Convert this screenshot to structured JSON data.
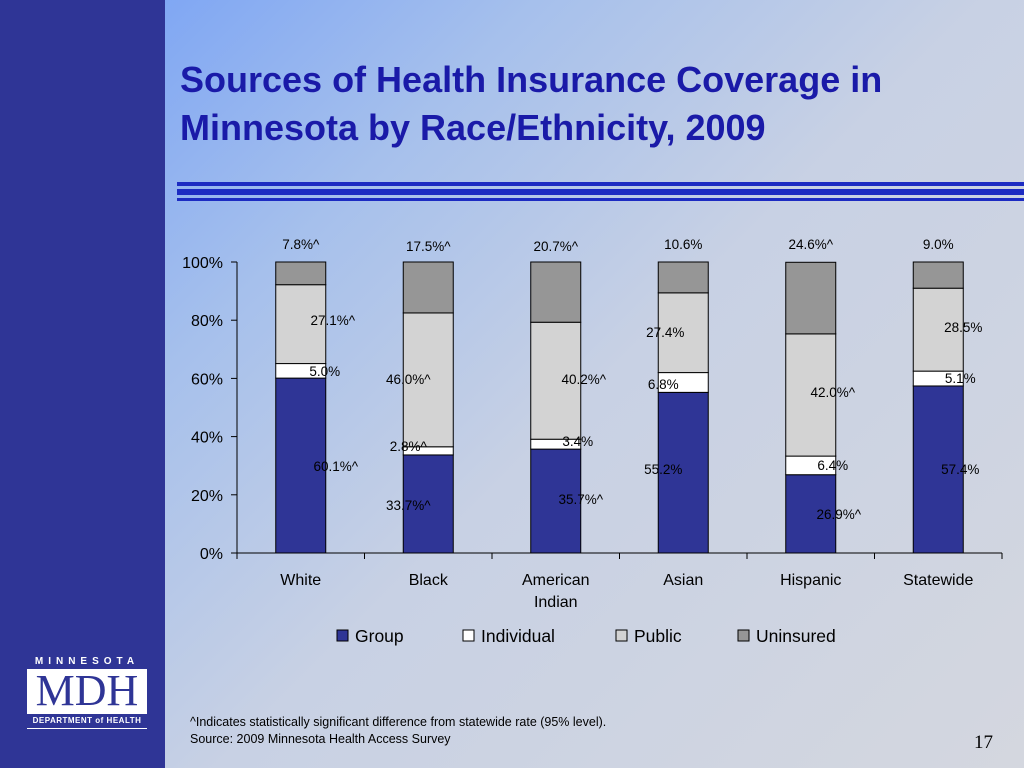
{
  "slide": {
    "title_line1": "Sources of Health Insurance Coverage in",
    "title_line2": "Minnesota by Race/Ethnicity, 2009",
    "footnote": "^Indicates statistically significant difference from statewide rate (95% level).",
    "source": "Source: 2009 Minnesota Health Access Survey",
    "page_number": "17"
  },
  "logo": {
    "top_text": "MINNESOTA",
    "main_text": "MDH",
    "bottom_text": "DEPARTMENT of HEALTH"
  },
  "chart_data": {
    "type": "bar",
    "stacked": true,
    "categories": [
      [
        "White"
      ],
      [
        "Black"
      ],
      [
        "American",
        "Indian"
      ],
      [
        "Asian"
      ],
      [
        "Hispanic"
      ],
      [
        "Statewide"
      ]
    ],
    "series": [
      {
        "name": "Group",
        "color": "#2f3596",
        "values": [
          60.1,
          33.7,
          35.7,
          55.2,
          26.9,
          57.4
        ],
        "labels": [
          "60.1%^",
          "33.7%^",
          "35.7%^",
          "55.2%",
          "26.9%^",
          "57.4%"
        ]
      },
      {
        "name": "Individual",
        "color": "#ffffff",
        "values": [
          5.0,
          2.8,
          3.4,
          6.8,
          6.4,
          5.1
        ],
        "labels": [
          "5.0%",
          "2.8%^",
          "3.4%",
          "6.8%",
          "6.4%",
          "5.1%"
        ]
      },
      {
        "name": "Public",
        "color": "#d3d3d3",
        "values": [
          27.1,
          46.0,
          40.2,
          27.4,
          42.0,
          28.5
        ],
        "labels": [
          "27.1%^",
          "46.0%^",
          "40.2%^",
          "27.4%",
          "42.0%^",
          "28.5%"
        ]
      },
      {
        "name": "Uninsured",
        "color": "#969696",
        "values": [
          7.8,
          17.5,
          20.7,
          10.6,
          24.6,
          9.0
        ],
        "labels": [
          "7.8%^",
          "17.5%^",
          "20.7%^",
          "10.6%",
          "24.6%^",
          "9.0%"
        ]
      }
    ],
    "y_ticks": [
      "0%",
      "20%",
      "40%",
      "60%",
      "80%",
      "100%"
    ],
    "ylim": [
      0,
      100
    ],
    "grid": false,
    "legend_position": "bottom"
  }
}
